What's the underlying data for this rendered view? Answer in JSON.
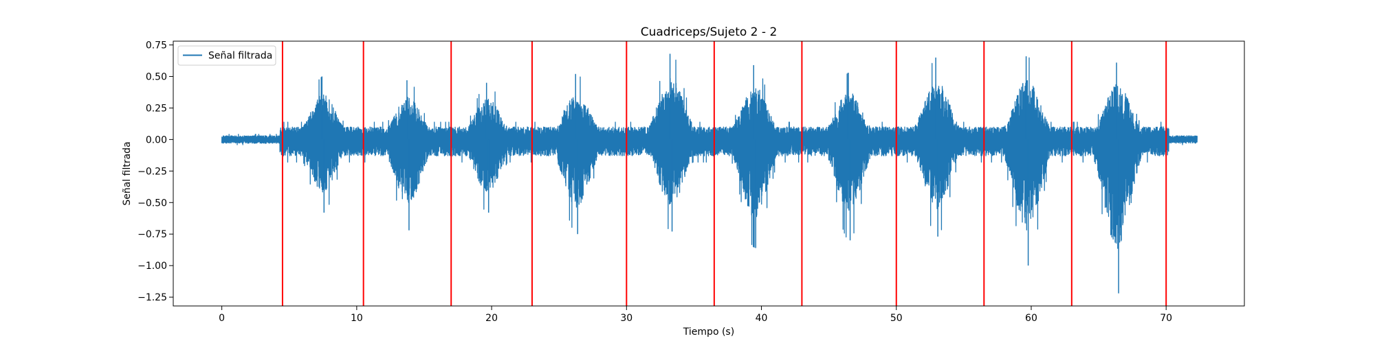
{
  "chart_data": {
    "type": "line",
    "title": "Cuadriceps/Sujeto 2 - 2",
    "xlabel": "Tiempo (s)",
    "ylabel": "Señal filtrada",
    "xlim": [
      -3.6,
      75.8
    ],
    "ylim": [
      -1.32,
      0.78
    ],
    "xticks": [
      0,
      10,
      20,
      30,
      40,
      50,
      60,
      70
    ],
    "xtick_labels": [
      "0",
      "10",
      "20",
      "30",
      "40",
      "50",
      "60",
      "70"
    ],
    "yticks": [
      0.75,
      0.5,
      0.25,
      0.0,
      -0.25,
      -0.5,
      -0.75,
      -1.0,
      -1.25
    ],
    "ytick_labels": [
      "0.75",
      "0.50",
      "0.25",
      "0.00",
      "−0.25",
      "−0.50",
      "−0.75",
      "−1.00",
      "−1.25"
    ],
    "grid": false,
    "legend": {
      "position": "upper left",
      "entries": [
        "Señal filtrada"
      ]
    },
    "series": [
      {
        "name": "Señal filtrada",
        "color": "#1f77b4",
        "x_range": [
          0,
          72.3
        ],
        "baseline_amplitude": 0.03,
        "bursts": [
          {
            "center": 7.5,
            "pos_peak": 0.5,
            "neg_peak": -0.58
          },
          {
            "center": 13.8,
            "pos_peak": 0.47,
            "neg_peak": -0.72
          },
          {
            "center": 19.7,
            "pos_peak": 0.45,
            "neg_peak": -0.58
          },
          {
            "center": 26.3,
            "pos_peak": 0.52,
            "neg_peak": -0.75
          },
          {
            "center": 33.3,
            "pos_peak": 0.68,
            "neg_peak": -0.73
          },
          {
            "center": 39.5,
            "pos_peak": 0.59,
            "neg_peak": -0.86
          },
          {
            "center": 46.5,
            "pos_peak": 0.53,
            "neg_peak": -0.8
          },
          {
            "center": 53.0,
            "pos_peak": 0.65,
            "neg_peak": -0.77
          },
          {
            "center": 59.7,
            "pos_peak": 0.66,
            "neg_peak": -1.0
          },
          {
            "center": 66.4,
            "pos_peak": 0.61,
            "neg_peak": -1.22
          }
        ]
      }
    ],
    "vertical_lines": {
      "color": "#ff0000",
      "x": [
        4.5,
        10.5,
        17.0,
        23.0,
        30.0,
        36.5,
        43.0,
        50.0,
        56.5,
        63.0,
        70.0
      ]
    }
  }
}
